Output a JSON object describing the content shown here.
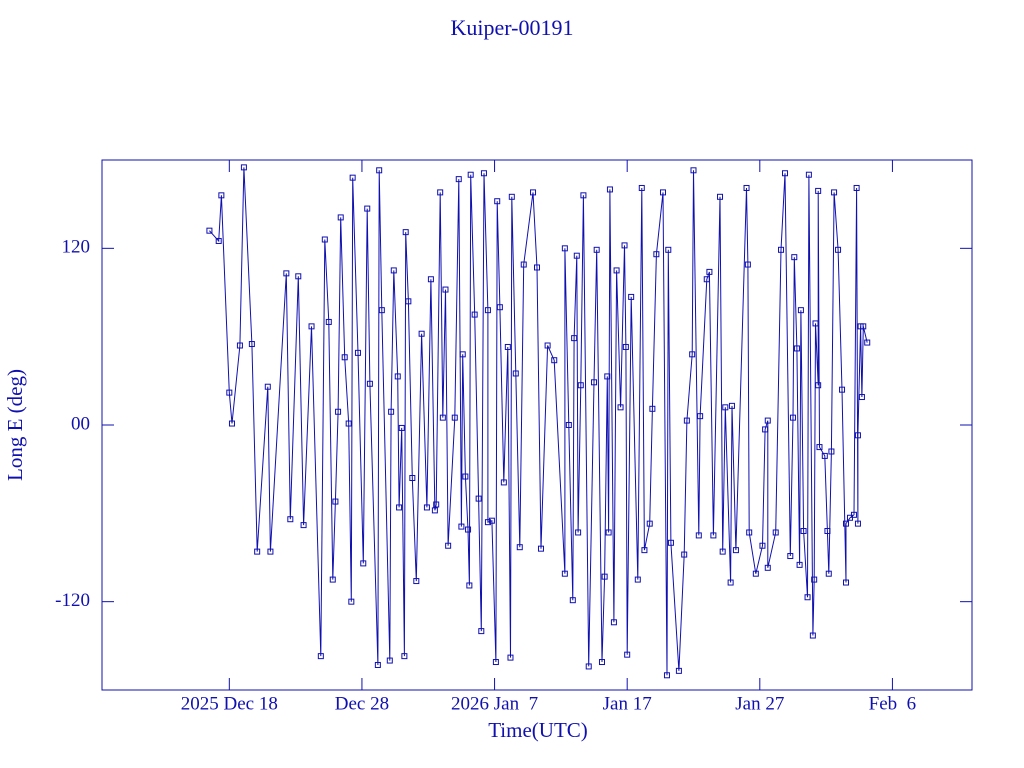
{
  "chart_data": {
    "type": "line",
    "title": "Kuiper-00191",
    "x_label": "Time(UTC)",
    "y_label": "Long E (deg)",
    "color": "#1010b0",
    "markers": "square",
    "xlim": [
      -9.6,
      56.0
    ],
    "xticks": [
      {
        "value": 0,
        "label": "2025 Dec 18"
      },
      {
        "value": 10,
        "label": "Dec 28"
      },
      {
        "value": 20,
        "label": "2026 Jan  7"
      },
      {
        "value": 30,
        "label": "Jan 17"
      },
      {
        "value": 40,
        "label": "Jan 27"
      },
      {
        "value": 50,
        "label": "Feb  6"
      }
    ],
    "ylim": [
      -180,
      180
    ],
    "yticks": [
      -120,
      {
        "value": 0,
        "label": "00"
      },
      120
    ],
    "x": [
      -1.5,
      -0.8,
      -0.6,
      0.0,
      0.2,
      0.8,
      1.1,
      1.7,
      2.1,
      2.9,
      3.1,
      4.3,
      4.6,
      5.2,
      5.6,
      6.2,
      6.9,
      7.2,
      7.5,
      7.8,
      8.0,
      8.2,
      8.4,
      8.7,
      9.0,
      9.2,
      9.3,
      9.7,
      10.1,
      10.4,
      10.6,
      11.2,
      11.3,
      11.5,
      12.1,
      12.2,
      12.4,
      12.7,
      12.8,
      13.0,
      13.2,
      13.3,
      13.5,
      13.8,
      14.1,
      14.5,
      14.9,
      15.2,
      15.5,
      15.6,
      15.9,
      16.1,
      16.3,
      16.5,
      17.0,
      17.3,
      17.5,
      17.6,
      17.8,
      18.0,
      18.1,
      18.2,
      18.5,
      18.8,
      19.0,
      19.2,
      19.5,
      19.5,
      19.8,
      20.1,
      20.2,
      20.4,
      20.7,
      21.0,
      21.2,
      21.3,
      21.6,
      21.9,
      22.2,
      22.9,
      23.2,
      23.5,
      24.0,
      24.5,
      25.3,
      25.3,
      25.6,
      25.9,
      26.0,
      26.2,
      26.3,
      26.5,
      26.7,
      27.1,
      27.5,
      27.7,
      28.1,
      28.3,
      28.5,
      28.6,
      28.7,
      29.0,
      29.2,
      29.5,
      29.8,
      29.9,
      30.0,
      30.3,
      30.8,
      31.1,
      31.3,
      31.7,
      31.9,
      32.2,
      32.7,
      33.0,
      33.1,
      33.3,
      33.9,
      34.3,
      34.5,
      34.9,
      35.0,
      35.4,
      35.5,
      36.0,
      36.2,
      36.5,
      37.0,
      37.2,
      37.4,
      37.8,
      37.9,
      38.2,
      39.0,
      39.1,
      39.2,
      39.7,
      40.2,
      40.4,
      40.6,
      40.6,
      41.2,
      41.6,
      41.9,
      42.3,
      42.5,
      42.6,
      42.8,
      43.0,
      43.1,
      43.3,
      43.6,
      43.7,
      44.0,
      44.1,
      44.2,
      44.4,
      44.4,
      44.5,
      44.9,
      45.1,
      45.2,
      45.4,
      45.6,
      45.9,
      46.2,
      46.5,
      46.5,
      46.8,
      47.1,
      47.3,
      47.4,
      47.4,
      47.6,
      47.7,
      47.8,
      48.1
    ],
    "values": [
      132,
      125,
      156,
      22,
      1,
      54,
      175,
      55,
      -86,
      26,
      -86,
      103,
      -64,
      101,
      -68,
      67,
      -157,
      126,
      70,
      -105,
      -52,
      9,
      141,
      46,
      1,
      -120,
      168,
      49,
      -94,
      147,
      28,
      -163,
      173,
      78,
      -160,
      9,
      105,
      33,
      -56,
      -2,
      -157,
      131,
      84,
      -36,
      -106,
      62,
      -56,
      99,
      -58,
      -54,
      158,
      5,
      92,
      -82,
      5,
      167,
      -69,
      48,
      -35,
      -71,
      -109,
      170,
      75,
      -50,
      -140,
      171,
      78,
      -66,
      -65,
      -161,
      152,
      80,
      -39,
      53,
      -158,
      155,
      35,
      -83,
      109,
      158,
      107,
      -84,
      54,
      44,
      -101,
      120,
      0,
      -119,
      59,
      115,
      -73,
      27,
      156,
      -164,
      29,
      119,
      -161,
      -103,
      33,
      -73,
      160,
      -134,
      105,
      12,
      122,
      53,
      -156,
      87,
      -105,
      161,
      -85,
      -67,
      11,
      116,
      158,
      -170,
      119,
      -80,
      -167,
      -88,
      3,
      48,
      173,
      -75,
      6,
      99,
      104,
      -75,
      155,
      -86,
      12,
      -107,
      13,
      -85,
      161,
      109,
      -73,
      -101,
      -82,
      -3,
      3,
      -97,
      -73,
      119,
      171,
      -89,
      5,
      114,
      52,
      -95,
      78,
      -72,
      -117,
      170,
      -143,
      -105,
      69,
      27,
      159,
      -15,
      -21,
      -72,
      -101,
      -18,
      158,
      119,
      24,
      -107,
      -67,
      -63,
      -61,
      161,
      -67,
      -7,
      67,
      19,
      67,
      56
    ]
  }
}
